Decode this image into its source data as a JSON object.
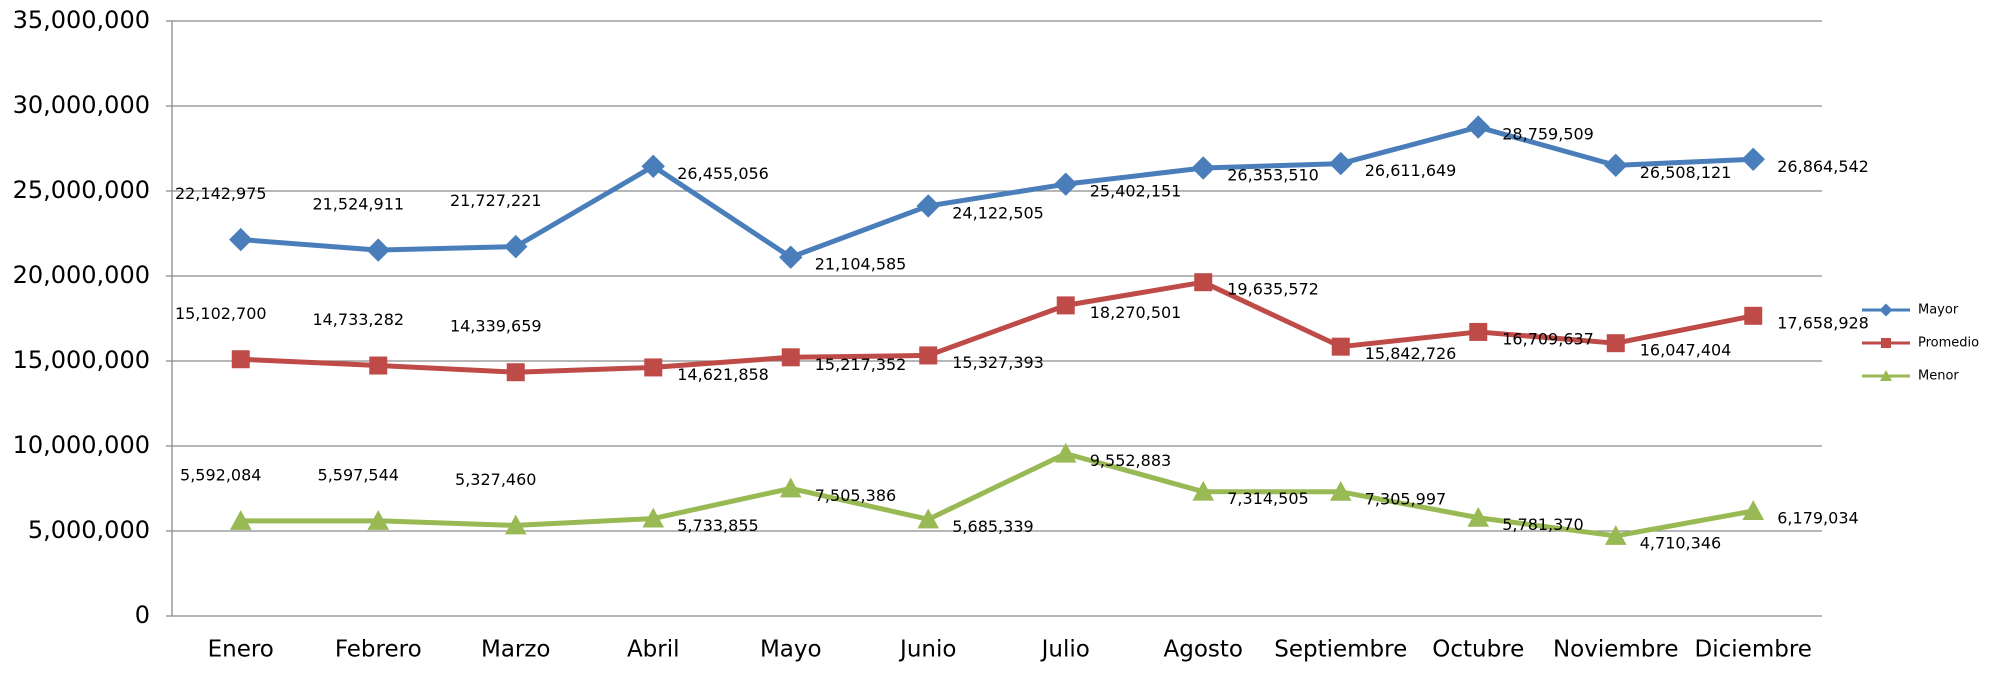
{
  "chart_data": {
    "type": "line",
    "categories": [
      "Enero",
      "Febrero",
      "Marzo",
      "Abril",
      "Mayo",
      "Junio",
      "Julio",
      "Agosto",
      "Septiembre",
      "Octubre",
      "Noviembre",
      "Diciembre"
    ],
    "series": [
      {
        "name": "Mayor",
        "color": "#4a7ebb",
        "marker": "diamond",
        "values": [
          22142975,
          21524911,
          21727221,
          26455056,
          21104585,
          24122505,
          25402151,
          26353510,
          26611649,
          28759509,
          26508121,
          26864542
        ],
        "value_labels": [
          "22,142,975",
          "21,524,911",
          "21,727,221",
          "26,455,056",
          "21,104,585",
          "24,122,505",
          "25,402,151",
          "26,353,510",
          "26,611,649",
          "28,759,509",
          "26,508,121",
          "26,864,542"
        ]
      },
      {
        "name": "Promedio",
        "color": "#be4b48",
        "marker": "square",
        "values": [
          15102700,
          14733282,
          14339659,
          14621858,
          15217352,
          15327393,
          18270501,
          19635572,
          15842726,
          16709637,
          16047404,
          17658928
        ],
        "value_labels": [
          "15,102,700",
          "14,733,282",
          "14,339,659",
          "14,621,858",
          "15,217,352",
          "15,327,393",
          "18,270,501",
          "19,635,572",
          "15,842,726",
          "16,709,637",
          "16,047,404",
          "17,658,928"
        ]
      },
      {
        "name": "Menor",
        "color": "#98b954",
        "marker": "triangle",
        "values": [
          5592084,
          5597544,
          5327460,
          5733855,
          7505386,
          5685339,
          9552883,
          7314505,
          7305997,
          5781370,
          4710346,
          6179034
        ],
        "value_labels": [
          "5,592,084",
          "5,597,544",
          "5,327,460",
          "5,733,855",
          "7,505,386",
          "5,685,339",
          "9,552,883",
          "7,314,505",
          "7,305,997",
          "5,781,370",
          "4,710,346",
          "6,179,034"
        ]
      }
    ],
    "ylim": [
      0,
      35000000
    ],
    "yticks": [
      0,
      {
        "value": 5000000,
        "label": "5,000,000"
      },
      {
        "value": 10000000,
        "label": "10,000,000"
      },
      {
        "value": 15000000,
        "label": "15,000,000"
      },
      {
        "value": 20000000,
        "label": "20,000,000"
      },
      {
        "value": 25000000,
        "label": "25,000,000"
      },
      {
        "value": 30000000,
        "label": "30,000,000"
      },
      {
        "value": 35000000,
        "label": "35,000,000"
      }
    ],
    "grid": true,
    "legend": "right"
  }
}
